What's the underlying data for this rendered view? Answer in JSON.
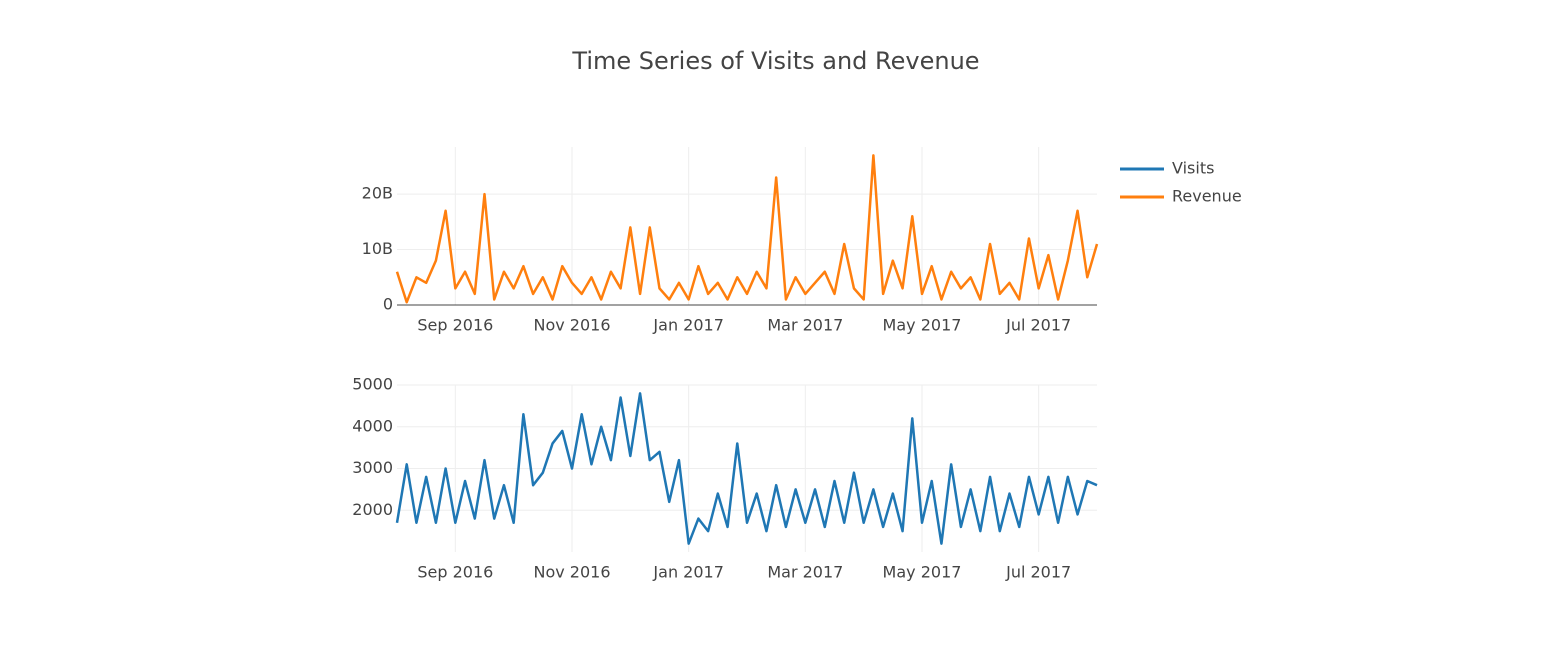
{
  "chart_data": [
    {
      "type": "line",
      "title": "Time Series of Visits and Revenue",
      "categories": [
        null,
        null,
        null,
        null,
        null,
        null,
        "Sep 2016",
        null,
        null,
        null,
        null,
        null,
        null,
        null,
        null,
        null,
        null,
        null,
        "Nov 2016",
        null,
        null,
        null,
        null,
        null,
        null,
        null,
        null,
        null,
        null,
        null,
        "Jan 2017",
        null,
        null,
        null,
        null,
        null,
        null,
        null,
        null,
        null,
        null,
        null,
        "Mar 2017",
        null,
        null,
        null,
        null,
        null,
        null,
        null,
        null,
        null,
        null,
        null,
        "May 2017",
        null,
        null,
        null,
        null,
        null,
        null,
        null,
        null,
        null,
        null,
        null,
        "Jul 2017",
        null,
        null,
        null,
        null,
        null,
        null
      ],
      "series": [
        {
          "name": "Revenue",
          "color": "#ff7f0e",
          "values": [
            6000000000.0,
            500000000.0,
            5000000000.0,
            4000000000.0,
            8000000000.0,
            17000000000.0,
            3000000000.0,
            6000000000.0,
            2000000000.0,
            20000000000.0,
            1000000000.0,
            6000000000.0,
            3000000000.0,
            7000000000.0,
            2000000000.0,
            5000000000.0,
            1000000000.0,
            7000000000.0,
            4000000000.0,
            2000000000.0,
            5000000000.0,
            1000000000.0,
            6000000000.0,
            3000000000.0,
            14000000000.0,
            2000000000.0,
            14000000000.0,
            3000000000.0,
            1000000000.0,
            4000000000.0,
            1000000000.0,
            7000000000.0,
            2000000000.0,
            4000000000.0,
            1000000000.0,
            5000000000.0,
            2000000000.0,
            6000000000.0,
            3000000000.0,
            23000000000.0,
            1000000000.0,
            5000000000.0,
            2000000000.0,
            4000000000.0,
            6000000000.0,
            2000000000.0,
            11000000000.0,
            3000000000.0,
            1000000000.0,
            27000000000.0,
            2000000000.0,
            8000000000.0,
            3000000000.0,
            16000000000.0,
            2000000000.0,
            7000000000.0,
            1000000000.0,
            6000000000.0,
            3000000000.0,
            5000000000.0,
            1000000000.0,
            11000000000.0,
            2000000000.0,
            4000000000.0,
            1000000000.0,
            12000000000.0,
            3000000000.0,
            9000000000.0,
            1000000000.0,
            8000000000.0,
            17000000000.0,
            5000000000.0,
            11000000000.0
          ]
        }
      ],
      "ylim": [
        0,
        28500000000
      ],
      "yticks": [
        0,
        {
          "value": 10000000000,
          "label": "10B"
        },
        {
          "value": 20000000000,
          "label": "20B"
        }
      ],
      "grid": true
    },
    {
      "type": "line",
      "categories": [
        null,
        null,
        null,
        null,
        null,
        null,
        "Sep 2016",
        null,
        null,
        null,
        null,
        null,
        null,
        null,
        null,
        null,
        null,
        null,
        "Nov 2016",
        null,
        null,
        null,
        null,
        null,
        null,
        null,
        null,
        null,
        null,
        null,
        "Jan 2017",
        null,
        null,
        null,
        null,
        null,
        null,
        null,
        null,
        null,
        null,
        null,
        "Mar 2017",
        null,
        null,
        null,
        null,
        null,
        null,
        null,
        null,
        null,
        null,
        null,
        "May 2017",
        null,
        null,
        null,
        null,
        null,
        null,
        null,
        null,
        null,
        null,
        null,
        "Jul 2017",
        null,
        null,
        null,
        null,
        null,
        null
      ],
      "series": [
        {
          "name": "Visits",
          "color": "#1f77b4",
          "values": [
            1700,
            3100,
            1700,
            2800,
            1700,
            3000,
            1700,
            2700,
            1800,
            3200,
            1800,
            2600,
            1700,
            4300,
            2600,
            2900,
            3600,
            3900,
            3000,
            4300,
            3100,
            4000,
            3200,
            4700,
            3300,
            4800,
            3200,
            3400,
            2200,
            3200,
            1200,
            1800,
            1500,
            2400,
            1600,
            3600,
            1700,
            2400,
            1500,
            2600,
            1600,
            2500,
            1700,
            2500,
            1600,
            2700,
            1700,
            2900,
            1700,
            2500,
            1600,
            2400,
            1500,
            4200,
            1700,
            2700,
            1200,
            3100,
            1600,
            2500,
            1500,
            2800,
            1500,
            2400,
            1600,
            2800,
            1900,
            2800,
            1700,
            2800,
            1900,
            2700,
            2600
          ]
        }
      ],
      "ylim": [
        1000,
        5000
      ],
      "yticks": [
        2000,
        3000,
        4000,
        5000
      ],
      "grid": true
    }
  ]
}
